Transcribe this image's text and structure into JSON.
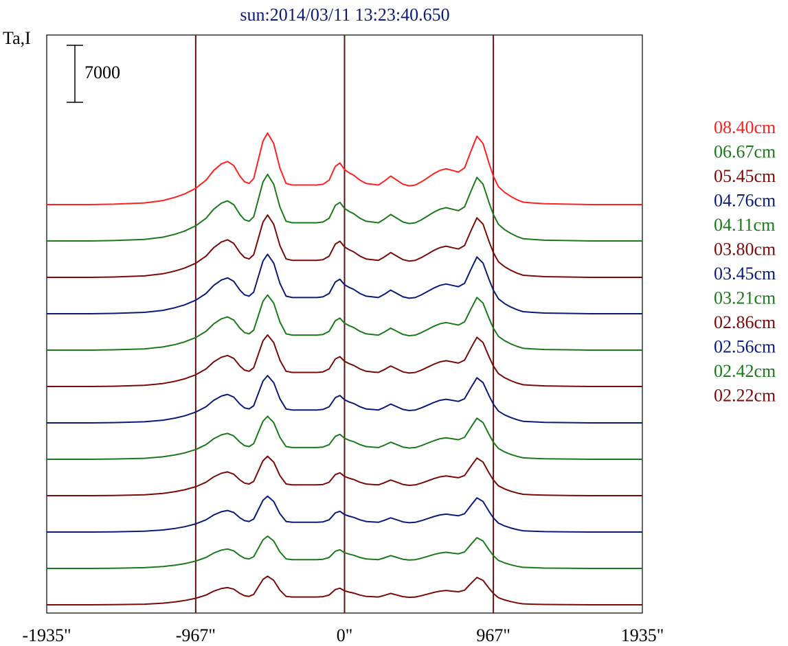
{
  "title": "sun:2014/03/11 13:23:40.650",
  "ylabel": "Ta,I",
  "scale_bar_label": "7000",
  "colors": {
    "red": "#ff2020",
    "green": "#1a7a1a",
    "darkred": "#7a0a0a",
    "blue": "#0a1a7a",
    "frame": "#000000",
    "vline": "#5a1414"
  },
  "chart_data": {
    "type": "line",
    "title": "sun:2014/03/11 13:23:40.650",
    "ylabel": "Ta,I",
    "xlabel": "",
    "xlim": [
      -1935,
      1935
    ],
    "x_ticks": [
      -1935,
      -967,
      0,
      967,
      1935
    ],
    "x_tick_labels": [
      "-1935\"",
      "-967\"",
      "0\"",
      "967\"",
      "1935\""
    ],
    "vertical_lines": [
      -967,
      0,
      967
    ],
    "scale_bar": 7000,
    "grid": false,
    "legend_position": "right",
    "series_offset": 2200,
    "legend": [
      {
        "label": "08.40cm",
        "color": "#ff2020"
      },
      {
        "label": "06.67cm",
        "color": "#1a7a1a"
      },
      {
        "label": "05.45cm",
        "color": "#7a0a0a"
      },
      {
        "label": "04.76cm",
        "color": "#0a1a7a"
      },
      {
        "label": "04.11cm",
        "color": "#1a7a1a"
      },
      {
        "label": "03.80cm",
        "color": "#7a0a0a"
      },
      {
        "label": "03.45cm",
        "color": "#0a1a7a"
      },
      {
        "label": "03.21cm",
        "color": "#1a7a1a"
      },
      {
        "label": "02.86cm",
        "color": "#7a0a0a"
      },
      {
        "label": "02.56cm",
        "color": "#0a1a7a"
      },
      {
        "label": "02.42cm",
        "color": "#1a7a1a"
      },
      {
        "label": "02.22cm",
        "color": "#7a0a0a"
      }
    ],
    "series": [
      {
        "color": "#ff2020",
        "peak_scale": 1.0
      },
      {
        "color": "#1a7a1a",
        "peak_scale": 0.93
      },
      {
        "color": "#7a0a0a",
        "peak_scale": 0.87
      },
      {
        "color": "#0a1a7a",
        "peak_scale": 0.83
      },
      {
        "color": "#1a7a1a",
        "peak_scale": 0.77
      },
      {
        "color": "#7a0a0a",
        "peak_scale": 0.72
      },
      {
        "color": "#0a1a7a",
        "peak_scale": 0.66
      },
      {
        "color": "#1a7a1a",
        "peak_scale": 0.6
      },
      {
        "color": "#7a0a0a",
        "peak_scale": 0.55
      },
      {
        "color": "#0a1a7a",
        "peak_scale": 0.5
      },
      {
        "color": "#1a7a1a",
        "peak_scale": 0.45
      },
      {
        "color": "#7a0a0a",
        "peak_scale": 0.4
      }
    ],
    "profile_x": [
      -1935,
      -1650,
      -1500,
      -1300,
      -1180,
      -1100,
      -1040,
      -967,
      -900,
      -850,
      -800,
      -760,
      -720,
      -680,
      -650,
      -620,
      -590,
      -560,
      -530,
      -500,
      -460,
      -420,
      -380,
      -340,
      -300,
      -260,
      -220,
      -180,
      -140,
      -100,
      -60,
      -30,
      0,
      30,
      60,
      100,
      140,
      180,
      220,
      260,
      300,
      340,
      380,
      420,
      460,
      500,
      540,
      580,
      620,
      660,
      700,
      740,
      780,
      820,
      860,
      900,
      940,
      967,
      1000,
      1040,
      1080,
      1120,
      1160,
      1220,
      1300,
      1450,
      1600,
      1935
    ],
    "profile_y": [
      0,
      0,
      50,
      200,
      500,
      900,
      1300,
      2000,
      3000,
      4200,
      5000,
      5300,
      4800,
      3500,
      2800,
      2600,
      3200,
      5500,
      7800,
      8800,
      7500,
      4500,
      2600,
      2400,
      2400,
      2400,
      2400,
      2400,
      2500,
      3000,
      4700,
      5100,
      4300,
      3900,
      3600,
      3000,
      2600,
      2500,
      2400,
      2900,
      3500,
      3000,
      2500,
      2300,
      2400,
      2800,
      3300,
      3800,
      4200,
      4400,
      4200,
      4000,
      4500,
      6500,
      8400,
      7500,
      5000,
      3500,
      2200,
      1500,
      1000,
      600,
      300,
      200,
      100,
      50,
      0,
      0
    ]
  }
}
